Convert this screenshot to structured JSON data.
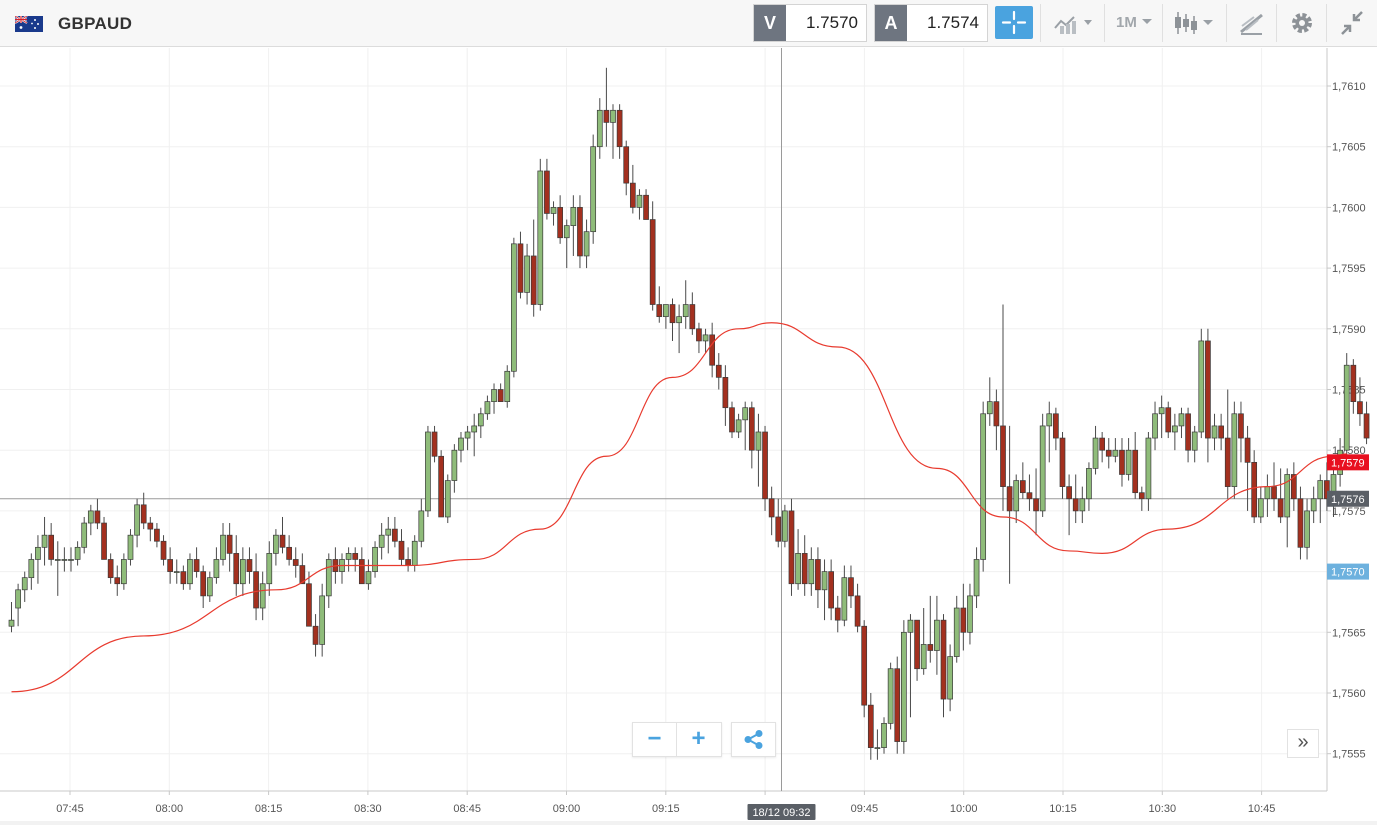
{
  "header": {
    "symbol": "GBPAUD",
    "flag_icon": "gb-au-flag-icon",
    "bid_label": "V",
    "bid_value": "1.7570",
    "ask_label": "A",
    "ask_value": "1.7574",
    "timeframe": "1M"
  },
  "controls": {
    "zoom_out": "−",
    "zoom_in": "+",
    "expand": "»"
  },
  "colors": {
    "up": "#8fbc7a",
    "down": "#a3301f",
    "ma": "#e83a2e",
    "accent": "#4aa3df",
    "price_tag": "#e8101f",
    "crosshair_tag": "#5a5f66",
    "bid_tag": "#6db1de"
  },
  "chart_data": {
    "type": "candlestick",
    "series_name": "GBPAUD 1M",
    "ylim": [
      1.7552,
      1.7612
    ],
    "y_ticks": [
      "1,7610",
      "1,7605",
      "1,7600",
      "1,7595",
      "1,7590",
      "1,7585",
      "1,7580",
      "1,7575",
      "1,7570",
      "1,7565",
      "1,7560",
      "1,7555"
    ],
    "y_tick_values": [
      1.761,
      1.7605,
      1.76,
      1.7595,
      1.759,
      1.7585,
      1.758,
      1.7575,
      1.757,
      1.7565,
      1.756,
      1.7555
    ],
    "x_ticks": [
      "07:45",
      "08:00",
      "08:15",
      "08:30",
      "08:45",
      "09:00",
      "09:15",
      "09:30",
      "09:45",
      "10:00",
      "10:15",
      "10:30",
      "10:45"
    ],
    "current_price_label": "1,7579",
    "current_price": 1.7579,
    "crosshair_price_label": "1,7576",
    "crosshair_price": 1.7576,
    "bid_price_label": "1,7570",
    "bid_price": 1.757,
    "crosshair_time_label": "18/12 09:32",
    "ma_anchors": [
      [
        0,
        1.75601
      ],
      [
        20,
        1.75647
      ],
      [
        40,
        1.75685
      ],
      [
        50,
        1.75705
      ],
      [
        60,
        1.75705
      ],
      [
        70,
        1.7571
      ],
      [
        80,
        1.75735
      ],
      [
        90,
        1.75795
      ],
      [
        100,
        1.7586
      ],
      [
        110,
        1.759
      ],
      [
        115,
        1.75905
      ],
      [
        125,
        1.75885
      ],
      [
        140,
        1.75785
      ],
      [
        150,
        1.75745
      ],
      [
        160,
        1.75717
      ],
      [
        165,
        1.75715
      ],
      [
        175,
        1.75735
      ],
      [
        190,
        1.7577
      ],
      [
        200,
        1.75795
      ],
      [
        202,
        1.75797
      ]
    ],
    "candles": [
      [
        1.75655,
        1.75675,
        1.7565,
        1.7566
      ],
      [
        1.7567,
        1.7569,
        1.75655,
        1.75685
      ],
      [
        1.75685,
        1.757,
        1.75675,
        1.75695
      ],
      [
        1.75695,
        1.75715,
        1.75685,
        1.7571
      ],
      [
        1.7571,
        1.7573,
        1.7569,
        1.7572
      ],
      [
        1.7572,
        1.75745,
        1.75705,
        1.7573
      ],
      [
        1.7573,
        1.7574,
        1.75705,
        1.7571
      ],
      [
        1.7571,
        1.75725,
        1.7568,
        1.7571
      ],
      [
        1.7571,
        1.7572,
        1.757,
        1.7571
      ],
      [
        1.7571,
        1.7572,
        1.757,
        1.7571
      ],
      [
        1.7571,
        1.75725,
        1.75705,
        1.7572
      ],
      [
        1.7572,
        1.75745,
        1.75715,
        1.7574
      ],
      [
        1.7574,
        1.75755,
        1.7573,
        1.7575
      ],
      [
        1.7575,
        1.7576,
        1.75735,
        1.7574
      ],
      [
        1.7574,
        1.75745,
        1.75715,
        1.7571
      ],
      [
        1.7571,
        1.75715,
        1.7569,
        1.75695
      ],
      [
        1.75695,
        1.75705,
        1.7568,
        1.7569
      ],
      [
        1.7569,
        1.75715,
        1.75685,
        1.7571
      ],
      [
        1.7571,
        1.75735,
        1.75705,
        1.7573
      ],
      [
        1.7573,
        1.7576,
        1.7572,
        1.75755
      ],
      [
        1.75755,
        1.75765,
        1.75735,
        1.7574
      ],
      [
        1.7574,
        1.75745,
        1.75725,
        1.75735
      ],
      [
        1.75735,
        1.7574,
        1.7572,
        1.75725
      ],
      [
        1.75725,
        1.7573,
        1.75705,
        1.7571
      ],
      [
        1.7571,
        1.7572,
        1.7569,
        1.757
      ],
      [
        1.757,
        1.7571,
        1.7569,
        1.757
      ],
      [
        1.757,
        1.75705,
        1.75685,
        1.7569
      ],
      [
        1.7569,
        1.75715,
        1.75685,
        1.7571
      ],
      [
        1.7571,
        1.7572,
        1.75695,
        1.757
      ],
      [
        1.757,
        1.75705,
        1.7567,
        1.7568
      ],
      [
        1.7568,
        1.757,
        1.75675,
        1.75695
      ],
      [
        1.75695,
        1.7572,
        1.7569,
        1.7571
      ],
      [
        1.7571,
        1.7574,
        1.75705,
        1.7573
      ],
      [
        1.7573,
        1.7574,
        1.757,
        1.75715
      ],
      [
        1.75715,
        1.7573,
        1.7568,
        1.7569
      ],
      [
        1.7569,
        1.7572,
        1.7568,
        1.7571
      ],
      [
        1.7571,
        1.7572,
        1.7569,
        1.757
      ],
      [
        1.757,
        1.75715,
        1.7566,
        1.7567
      ],
      [
        1.7567,
        1.757,
        1.7566,
        1.7569
      ],
      [
        1.7569,
        1.75725,
        1.7568,
        1.75715
      ],
      [
        1.75715,
        1.75735,
        1.75705,
        1.7573
      ],
      [
        1.7573,
        1.75745,
        1.75715,
        1.7572
      ],
      [
        1.7572,
        1.7573,
        1.75705,
        1.7571
      ],
      [
        1.7571,
        1.7572,
        1.75695,
        1.75705
      ],
      [
        1.75705,
        1.75715,
        1.7569,
        1.7569
      ],
      [
        1.7569,
        1.757,
        1.7566,
        1.75655
      ],
      [
        1.75655,
        1.75665,
        1.7563,
        1.7564
      ],
      [
        1.7564,
        1.7569,
        1.7563,
        1.7568
      ],
      [
        1.7568,
        1.75715,
        1.7567,
        1.7571
      ],
      [
        1.7571,
        1.7572,
        1.7569,
        1.757
      ],
      [
        1.757,
        1.75715,
        1.7569,
        1.7571
      ],
      [
        1.7571,
        1.7572,
        1.757,
        1.75715
      ],
      [
        1.75715,
        1.7572,
        1.757,
        1.7571
      ],
      [
        1.7571,
        1.7572,
        1.7569,
        1.7569
      ],
      [
        1.7569,
        1.7571,
        1.75685,
        1.757
      ],
      [
        1.757,
        1.75725,
        1.75695,
        1.7572
      ],
      [
        1.7572,
        1.7574,
        1.7571,
        1.7573
      ],
      [
        1.7573,
        1.75745,
        1.75715,
        1.75735
      ],
      [
        1.75735,
        1.75745,
        1.7572,
        1.75725
      ],
      [
        1.75725,
        1.75735,
        1.75705,
        1.7571
      ],
      [
        1.7571,
        1.7572,
        1.757,
        1.75705
      ],
      [
        1.75705,
        1.7573,
        1.757,
        1.75725
      ],
      [
        1.75725,
        1.7576,
        1.7572,
        1.7575
      ],
      [
        1.7575,
        1.7582,
        1.75745,
        1.75815
      ],
      [
        1.75815,
        1.7582,
        1.7579,
        1.75795
      ],
      [
        1.75795,
        1.758,
        1.7575,
        1.75745
      ],
      [
        1.75745,
        1.7578,
        1.7574,
        1.75775
      ],
      [
        1.75775,
        1.75805,
        1.75765,
        1.758
      ],
      [
        1.758,
        1.75815,
        1.7579,
        1.7581
      ],
      [
        1.7581,
        1.7582,
        1.758,
        1.75815
      ],
      [
        1.75815,
        1.7583,
        1.75795,
        1.7582
      ],
      [
        1.7582,
        1.75835,
        1.7581,
        1.7583
      ],
      [
        1.7583,
        1.75845,
        1.75825,
        1.7584
      ],
      [
        1.7584,
        1.75855,
        1.7583,
        1.7585
      ],
      [
        1.7585,
        1.75855,
        1.7584,
        1.7584
      ],
      [
        1.7584,
        1.7587,
        1.75835,
        1.75865
      ],
      [
        1.75865,
        1.75975,
        1.7586,
        1.7597
      ],
      [
        1.7597,
        1.7598,
        1.75925,
        1.7593
      ],
      [
        1.7593,
        1.7597,
        1.7592,
        1.7596
      ],
      [
        1.7596,
        1.7599,
        1.7591,
        1.7592
      ],
      [
        1.7592,
        1.7604,
        1.75915,
        1.7603
      ],
      [
        1.7603,
        1.7604,
        1.7599,
        1.75995
      ],
      [
        1.75995,
        1.76005,
        1.75985,
        1.76
      ],
      [
        1.76,
        1.7601,
        1.7597,
        1.75975
      ],
      [
        1.75975,
        1.7599,
        1.7595,
        1.75985
      ],
      [
        1.75985,
        1.7601,
        1.7596,
        1.76
      ],
      [
        1.76,
        1.7601,
        1.7595,
        1.7596
      ],
      [
        1.7596,
        1.7599,
        1.7595,
        1.7598
      ],
      [
        1.7598,
        1.7606,
        1.7597,
        1.7605
      ],
      [
        1.7605,
        1.7609,
        1.7604,
        1.7608
      ],
      [
        1.7608,
        1.76115,
        1.7605,
        1.7607
      ],
      [
        1.7607,
        1.76085,
        1.7604,
        1.7608
      ],
      [
        1.7608,
        1.76085,
        1.7604,
        1.7605
      ],
      [
        1.7605,
        1.76055,
        1.7601,
        1.7602
      ],
      [
        1.7602,
        1.76035,
        1.75995,
        1.76
      ],
      [
        1.76,
        1.76015,
        1.7599,
        1.7601
      ],
      [
        1.7601,
        1.76015,
        1.7599,
        1.7599
      ],
      [
        1.7599,
        1.76005,
        1.75915,
        1.7592
      ],
      [
        1.7592,
        1.75935,
        1.75905,
        1.7591
      ],
      [
        1.7591,
        1.7592,
        1.759,
        1.7592
      ],
      [
        1.7592,
        1.75925,
        1.7589,
        1.75905
      ],
      [
        1.75905,
        1.7592,
        1.7588,
        1.7591
      ],
      [
        1.7591,
        1.7594,
        1.759,
        1.7592
      ],
      [
        1.7592,
        1.7593,
        1.75895,
        1.759
      ],
      [
        1.759,
        1.75905,
        1.7588,
        1.7589
      ],
      [
        1.7589,
        1.759,
        1.7588,
        1.75895
      ],
      [
        1.75895,
        1.75905,
        1.7586,
        1.7587
      ],
      [
        1.7587,
        1.7588,
        1.7585,
        1.7586
      ],
      [
        1.7586,
        1.7587,
        1.7582,
        1.75835
      ],
      [
        1.75835,
        1.7584,
        1.7581,
        1.75815
      ],
      [
        1.75815,
        1.7583,
        1.7581,
        1.75825
      ],
      [
        1.75825,
        1.7584,
        1.758,
        1.75835
      ],
      [
        1.75835,
        1.7584,
        1.75785,
        1.758
      ],
      [
        1.758,
        1.7583,
        1.7577,
        1.75815
      ],
      [
        1.75815,
        1.7582,
        1.7575,
        1.7576
      ],
      [
        1.7576,
        1.7577,
        1.7573,
        1.75745
      ],
      [
        1.75745,
        1.7576,
        1.7572,
        1.75725
      ],
      [
        1.75725,
        1.75755,
        1.7572,
        1.7575
      ],
      [
        1.7575,
        1.7576,
        1.7568,
        1.7569
      ],
      [
        1.7569,
        1.75735,
        1.75685,
        1.75715
      ],
      [
        1.75715,
        1.7573,
        1.7568,
        1.7569
      ],
      [
        1.7569,
        1.7572,
        1.7568,
        1.7571
      ],
      [
        1.7571,
        1.7572,
        1.7567,
        1.75685
      ],
      [
        1.75685,
        1.7571,
        1.7566,
        1.757
      ],
      [
        1.757,
        1.7571,
        1.7566,
        1.7567
      ],
      [
        1.7567,
        1.7568,
        1.7565,
        1.7566
      ],
      [
        1.7566,
        1.75705,
        1.75655,
        1.75695
      ],
      [
        1.75695,
        1.75705,
        1.7567,
        1.7568
      ],
      [
        1.7568,
        1.7569,
        1.7565,
        1.75655
      ],
      [
        1.75655,
        1.7566,
        1.7558,
        1.7559
      ],
      [
        1.7559,
        1.756,
        1.75545,
        1.75555
      ],
      [
        1.75555,
        1.7557,
        1.75545,
        1.75555
      ],
      [
        1.75555,
        1.7558,
        1.7555,
        1.75575
      ],
      [
        1.75575,
        1.75625,
        1.7557,
        1.7562
      ],
      [
        1.7562,
        1.7563,
        1.7555,
        1.7556
      ],
      [
        1.7556,
        1.7566,
        1.7555,
        1.7565
      ],
      [
        1.7565,
        1.75665,
        1.7558,
        1.7566
      ],
      [
        1.7566,
        1.7566,
        1.7561,
        1.7562
      ],
      [
        1.7562,
        1.7567,
        1.75615,
        1.7564
      ],
      [
        1.7564,
        1.7568,
        1.75625,
        1.75635
      ],
      [
        1.75635,
        1.7568,
        1.75615,
        1.7566
      ],
      [
        1.7566,
        1.75665,
        1.7558,
        1.75595
      ],
      [
        1.75595,
        1.7564,
        1.75585,
        1.7563
      ],
      [
        1.7563,
        1.7568,
        1.75625,
        1.7567
      ],
      [
        1.7567,
        1.7569,
        1.75635,
        1.7565
      ],
      [
        1.7565,
        1.7569,
        1.7564,
        1.7568
      ],
      [
        1.7568,
        1.7572,
        1.7567,
        1.7571
      ],
      [
        1.7571,
        1.7584,
        1.757,
        1.7583
      ],
      [
        1.7583,
        1.7586,
        1.7582,
        1.7584
      ],
      [
        1.7584,
        1.7585,
        1.758,
        1.7582
      ],
      [
        1.7582,
        1.7592,
        1.7575,
        1.7577
      ],
      [
        1.7577,
        1.7582,
        1.7569,
        1.7575
      ],
      [
        1.7575,
        1.7578,
        1.7574,
        1.75775
      ],
      [
        1.75775,
        1.7579,
        1.7576,
        1.75765
      ],
      [
        1.75765,
        1.7578,
        1.7575,
        1.7576
      ],
      [
        1.7576,
        1.75785,
        1.7573,
        1.7575
      ],
      [
        1.7575,
        1.7583,
        1.75745,
        1.7582
      ],
      [
        1.7582,
        1.7584,
        1.7579,
        1.7583
      ],
      [
        1.7583,
        1.75835,
        1.758,
        1.7581
      ],
      [
        1.7581,
        1.75815,
        1.7576,
        1.7577
      ],
      [
        1.7577,
        1.7578,
        1.7573,
        1.7576
      ],
      [
        1.7576,
        1.7578,
        1.7574,
        1.7575
      ],
      [
        1.7575,
        1.7577,
        1.7574,
        1.7576
      ],
      [
        1.7576,
        1.7579,
        1.7575,
        1.75785
      ],
      [
        1.75785,
        1.7582,
        1.7578,
        1.7581
      ],
      [
        1.7581,
        1.75815,
        1.7579,
        1.758
      ],
      [
        1.758,
        1.7581,
        1.75785,
        1.75795
      ],
      [
        1.75795,
        1.7581,
        1.7579,
        1.758
      ],
      [
        1.758,
        1.7581,
        1.7577,
        1.7578
      ],
      [
        1.7578,
        1.7581,
        1.75775,
        1.758
      ],
      [
        1.758,
        1.75815,
        1.7576,
        1.75765
      ],
      [
        1.75765,
        1.7577,
        1.7575,
        1.7576
      ],
      [
        1.7576,
        1.75815,
        1.7575,
        1.7581
      ],
      [
        1.7581,
        1.7584,
        1.758,
        1.7583
      ],
      [
        1.7583,
        1.75845,
        1.7581,
        1.75835
      ],
      [
        1.75835,
        1.7584,
        1.7581,
        1.75815
      ],
      [
        1.75815,
        1.7583,
        1.758,
        1.7582
      ],
      [
        1.7582,
        1.75835,
        1.7581,
        1.7583
      ],
      [
        1.7583,
        1.75835,
        1.7579,
        1.758
      ],
      [
        1.758,
        1.7582,
        1.7579,
        1.75815
      ],
      [
        1.75815,
        1.759,
        1.7581,
        1.7589
      ],
      [
        1.7589,
        1.759,
        1.7579,
        1.7581
      ],
      [
        1.7581,
        1.7583,
        1.758,
        1.7582
      ],
      [
        1.7582,
        1.7583,
        1.758,
        1.7581
      ],
      [
        1.7581,
        1.7585,
        1.7576,
        1.7577
      ],
      [
        1.7577,
        1.7584,
        1.7576,
        1.7583
      ],
      [
        1.7583,
        1.7584,
        1.7579,
        1.7581
      ],
      [
        1.7581,
        1.7582,
        1.7575,
        1.7579
      ],
      [
        1.7579,
        1.758,
        1.7574,
        1.75745
      ],
      [
        1.75745,
        1.7577,
        1.7574,
        1.7576
      ],
      [
        1.7576,
        1.7578,
        1.75745,
        1.7577
      ],
      [
        1.7577,
        1.7579,
        1.7575,
        1.7576
      ],
      [
        1.7576,
        1.75785,
        1.7574,
        1.75745
      ],
      [
        1.75745,
        1.75785,
        1.7572,
        1.7578
      ],
      [
        1.7578,
        1.7579,
        1.7575,
        1.7576
      ],
      [
        1.7576,
        1.7577,
        1.7571,
        1.7572
      ],
      [
        1.7572,
        1.7576,
        1.7571,
        1.7575
      ],
      [
        1.7575,
        1.7577,
        1.7574,
        1.7576
      ],
      [
        1.7576,
        1.7578,
        1.7574,
        1.75775
      ],
      [
        1.75775,
        1.7579,
        1.7575,
        1.7576
      ],
      [
        1.7576,
        1.7579,
        1.75745,
        1.7578
      ],
      [
        1.7578,
        1.7581,
        1.7577,
        1.758
      ],
      [
        1.758,
        1.7588,
        1.7579,
        1.7587
      ],
      [
        1.7587,
        1.75875,
        1.7583,
        1.7584
      ],
      [
        1.7584,
        1.7586,
        1.7582,
        1.7583
      ],
      [
        1.7583,
        1.7584,
        1.75805,
        1.7581
      ]
    ]
  }
}
